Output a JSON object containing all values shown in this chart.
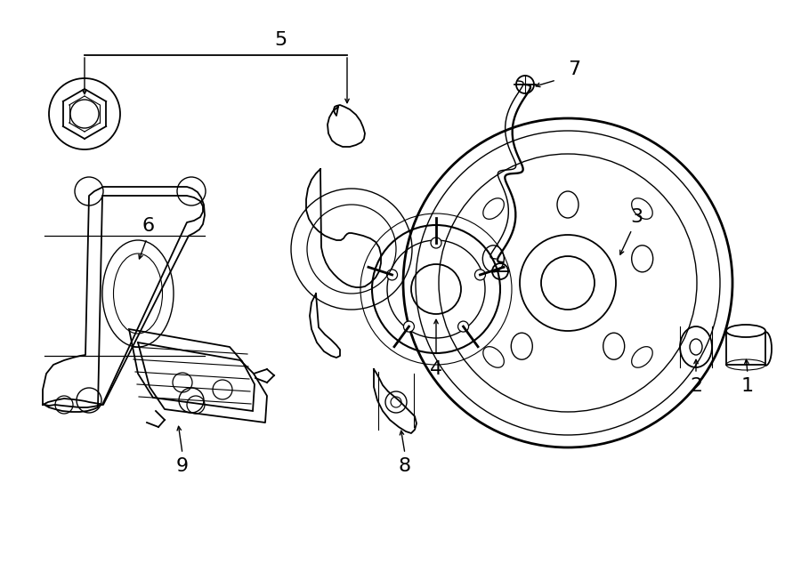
{
  "bg_color": "#ffffff",
  "line_color": "#000000",
  "lw": 1.3,
  "fig_w": 9.0,
  "fig_h": 6.61,
  "dpi": 100
}
